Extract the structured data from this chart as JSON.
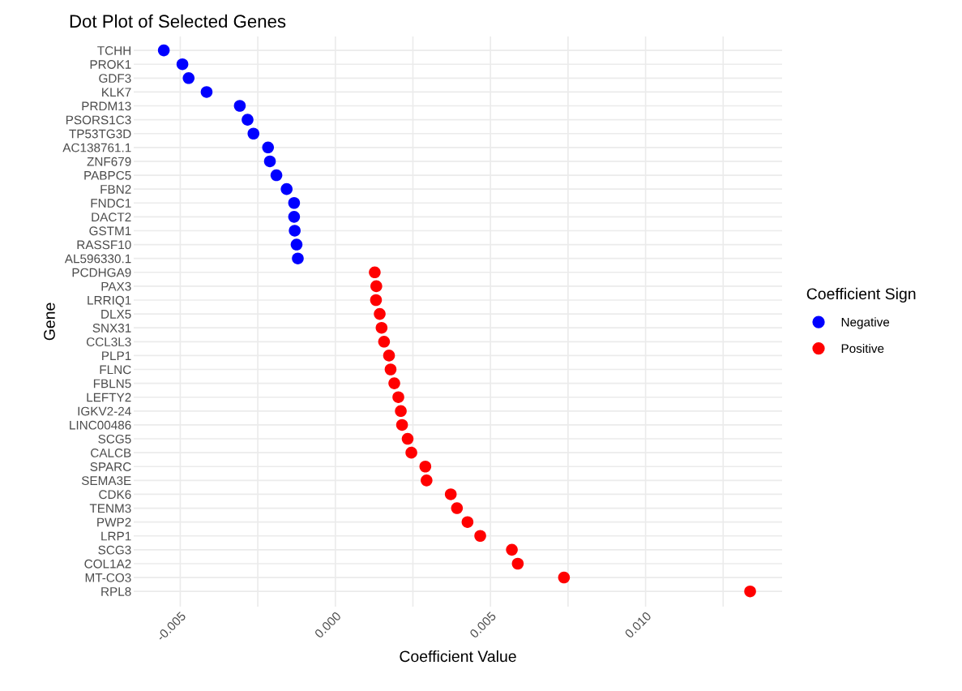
{
  "chart_data": {
    "type": "scatter",
    "orientation": "horizontal",
    "title": "Dot Plot of Selected Genes",
    "xlabel": "Coefficient Value",
    "ylabel": "Gene",
    "legend_title": "Coefficient Sign",
    "legend": "right",
    "grid": true,
    "marker": "circle",
    "categories": [
      "TCHH",
      "PROK1",
      "GDF3",
      "KLK7",
      "PRDM13",
      "PSORS1C3",
      "TP53TG3D",
      "AC138761.1",
      "ZNF679",
      "PABPC5",
      "FBN2",
      "FNDC1",
      "DACT2",
      "GSTM1",
      "RASSF10",
      "AL596330.1",
      "PCDHGA9",
      "PAX3",
      "LRRIQ1",
      "DLX5",
      "SNX31",
      "CCL3L3",
      "PLP1",
      "FLNC",
      "FBLN5",
      "LEFTY2",
      "IGKV2-24",
      "LINC00486",
      "SCG5",
      "CALCB",
      "SPARC",
      "SEMA3E",
      "CDK6",
      "TENM3",
      "PWP2",
      "LRP1",
      "SCG3",
      "COL1A2",
      "MT-CO3",
      "RPL8"
    ],
    "xlim": [
      -0.0065,
      0.0144
    ],
    "xticks": [
      {
        "value": -0.005,
        "label": "-0.005"
      },
      {
        "value": -0.0025,
        "label": null
      },
      {
        "value": 0,
        "label": "0.000"
      },
      {
        "value": 0.0025,
        "label": null
      },
      {
        "value": 0.005,
        "label": "0.005"
      },
      {
        "value": 0.0075,
        "label": null
      },
      {
        "value": 0.01,
        "label": "0.010"
      },
      {
        "value": 0.0125,
        "label": null
      }
    ],
    "series": [
      {
        "name": "Negative",
        "color": "#0000ff",
        "values": [
          -0.00553,
          -0.00493,
          -0.00473,
          -0.00415,
          -0.00308,
          -0.00283,
          -0.00264,
          -0.00217,
          -0.00211,
          -0.0019,
          -0.00157,
          -0.00133,
          -0.00133,
          -0.00131,
          -0.00125,
          -0.00121,
          null,
          null,
          null,
          null,
          null,
          null,
          null,
          null,
          null,
          null,
          null,
          null,
          null,
          null,
          null,
          null,
          null,
          null,
          null,
          null,
          null,
          null,
          null,
          null
        ]
      },
      {
        "name": "Positive",
        "color": "#ff0000",
        "values": [
          null,
          null,
          null,
          null,
          null,
          null,
          null,
          null,
          null,
          null,
          null,
          null,
          null,
          null,
          null,
          null,
          0.00127,
          0.00132,
          0.00131,
          0.00143,
          0.00149,
          0.00157,
          0.00173,
          0.00178,
          0.0019,
          0.00203,
          0.00211,
          0.00215,
          0.00233,
          0.00245,
          0.0029,
          0.00294,
          0.00372,
          0.00392,
          0.00426,
          0.00467,
          0.00569,
          0.00588,
          0.00737,
          0.01337
        ]
      }
    ]
  }
}
